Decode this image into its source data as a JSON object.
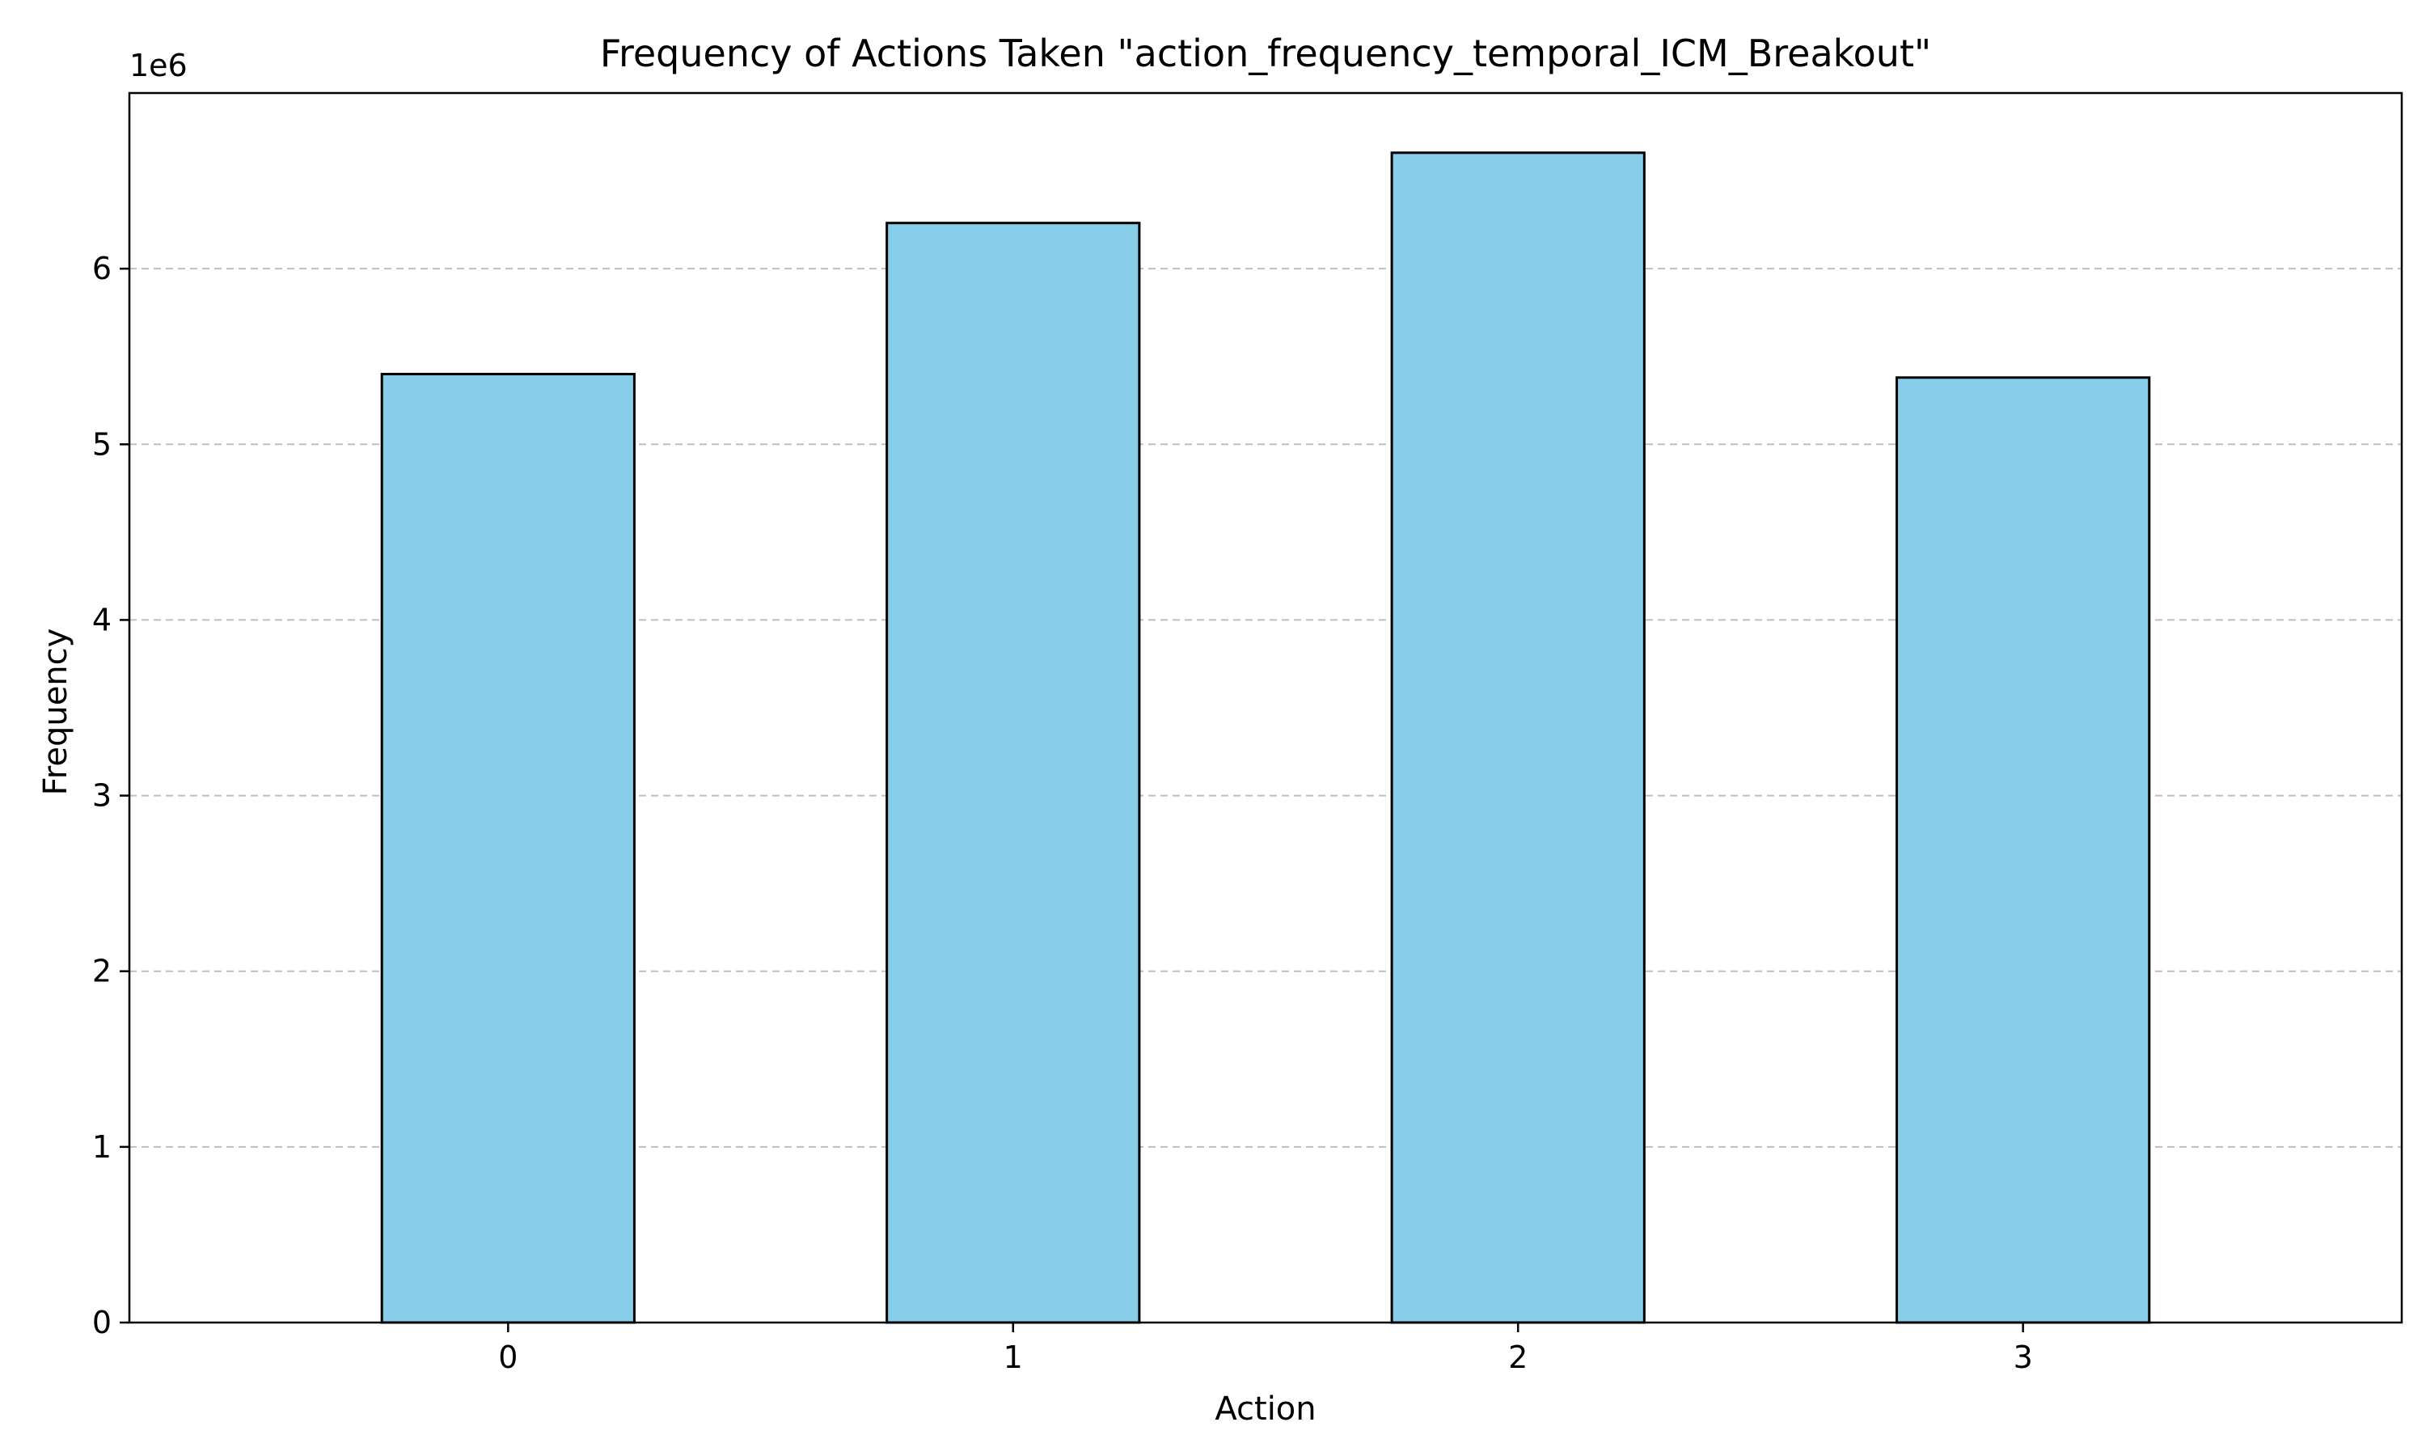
{
  "chart_data": {
    "type": "bar",
    "title": "Frequency of Actions Taken \"action_frequency_temporal_ICM_Breakout\"",
    "xlabel": "Action",
    "ylabel": "Frequency",
    "y_offset_label": "1e6",
    "categories": [
      "0",
      "1",
      "2",
      "3"
    ],
    "values": [
      5400000,
      6260000,
      6660000,
      5380000
    ],
    "ylim": [
      0,
      7000000
    ],
    "yticks": [
      0,
      1000000,
      2000000,
      3000000,
      4000000,
      5000000,
      6000000
    ],
    "ytick_labels": [
      "0",
      "1",
      "2",
      "3",
      "4",
      "5",
      "6"
    ],
    "grid": "y, dashed",
    "colors": {
      "bar_fill": "#87CEEB",
      "bar_edge": "#000000",
      "grid": "#bfbfbf"
    }
  }
}
